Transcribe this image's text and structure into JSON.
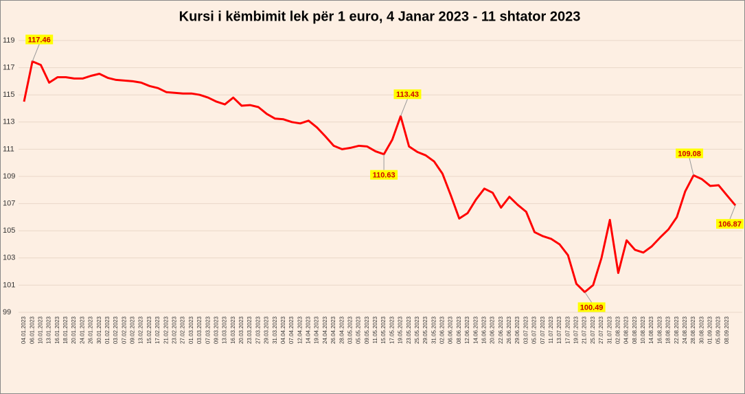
{
  "chart_data": {
    "type": "line",
    "title": "Kursi i këmbimit lek për 1 euro, 4 Janar 2023  - 11 shtator 2023",
    "categories": [
      "04.01.2023",
      "06.01.2023",
      "10.01.2023",
      "13.01.2023",
      "16.01.2023",
      "18.01.2023",
      "20.01.2023",
      "24.01.2023",
      "26.01.2023",
      "30.01.2023",
      "01.02.2023",
      "03.02.2023",
      "07.02.2023",
      "09.02.2023",
      "13.02.2023",
      "15.02.2023",
      "17.02.2023",
      "21.02.2023",
      "23.02.2023",
      "27.02.2023",
      "01.03.2023",
      "03.03.2023",
      "07.03.2023",
      "09.03.2023",
      "13.03.2023",
      "16.03.2023",
      "20.03.2023",
      "23.03.2023",
      "27.03.2023",
      "29.03.2023",
      "31.03.2023",
      "04.04.2023",
      "07.04.2023",
      "12.04.2023",
      "14.04.2023",
      "19.04.2023",
      "24.04.2023",
      "26.04.2023",
      "28.04.2023",
      "03.05.2023",
      "05.05.2023",
      "09.05.2023",
      "11.05.2023",
      "15.05.2023",
      "17.05.2023",
      "19.05.2023",
      "23.05.2023",
      "25.05.2023",
      "29.05.2023",
      "31.05.2023",
      "02.06.2023",
      "06.06.2023",
      "08.06.2023",
      "12.06.2023",
      "14.06.2023",
      "16.06.2023",
      "20.06.2023",
      "22.06.2023",
      "26.06.2023",
      "29.06.2023",
      "03.07.2023",
      "05.07.2023",
      "07.07.2023",
      "11.07.2023",
      "13.07.2023",
      "17.07.2023",
      "19.07.2023",
      "21.07.2023",
      "25.07.2023",
      "27.07.2023",
      "31.07.2023",
      "02.08.2023",
      "04.08.2023",
      "08.08.2023",
      "10.08.2023",
      "14.08.2023",
      "16.08.2023",
      "18.08.2023",
      "22.08.2023",
      "24.08.2023",
      "28.08.2023",
      "30.08.2023",
      "01.09.2023",
      "05.09.2023",
      "08.09.2023",
      null
    ],
    "values": [
      114.5,
      117.46,
      117.2,
      115.9,
      116.3,
      116.3,
      116.2,
      116.2,
      116.4,
      116.55,
      116.25,
      116.1,
      116.05,
      116.0,
      115.9,
      115.65,
      115.5,
      115.2,
      115.15,
      115.1,
      115.1,
      115.0,
      114.8,
      114.5,
      114.3,
      114.8,
      114.2,
      114.25,
      114.1,
      113.6,
      113.25,
      113.2,
      113.0,
      112.9,
      113.1,
      112.6,
      111.95,
      111.25,
      111.0,
      111.1,
      111.25,
      111.2,
      110.85,
      110.63,
      111.7,
      113.43,
      111.2,
      110.8,
      110.55,
      110.1,
      109.2,
      107.6,
      105.9,
      106.3,
      107.3,
      108.1,
      107.8,
      106.7,
      107.5,
      106.9,
      106.4,
      104.9,
      104.6,
      104.4,
      104.0,
      103.2,
      101.1,
      100.49,
      101.0,
      103.0,
      105.8,
      101.9,
      104.3,
      103.6,
      103.4,
      103.85,
      104.5,
      105.1,
      106.0,
      107.9,
      109.08,
      108.8,
      108.3,
      108.35,
      107.6,
      106.87
    ],
    "value_labels": [
      null,
      "117.46",
      null,
      null,
      null,
      null,
      null,
      null,
      null,
      null,
      null,
      null,
      null,
      null,
      null,
      null,
      null,
      null,
      null,
      null,
      null,
      null,
      null,
      null,
      null,
      null,
      null,
      null,
      null,
      null,
      null,
      null,
      null,
      null,
      null,
      null,
      null,
      null,
      null,
      null,
      null,
      null,
      null,
      "110.63",
      null,
      "113.43",
      null,
      null,
      null,
      null,
      null,
      null,
      null,
      null,
      null,
      null,
      null,
      null,
      null,
      null,
      null,
      null,
      null,
      null,
      null,
      null,
      null,
      "100.49",
      null,
      null,
      null,
      null,
      null,
      null,
      null,
      null,
      null,
      null,
      null,
      null,
      "109.08",
      null,
      null,
      null,
      null,
      "106.87"
    ],
    "color": "#ff0000",
    "ylim": [
      99,
      119
    ],
    "yticks": [
      99,
      101,
      103,
      105,
      107,
      109,
      111,
      113,
      115,
      117,
      119
    ],
    "grid": true
  }
}
